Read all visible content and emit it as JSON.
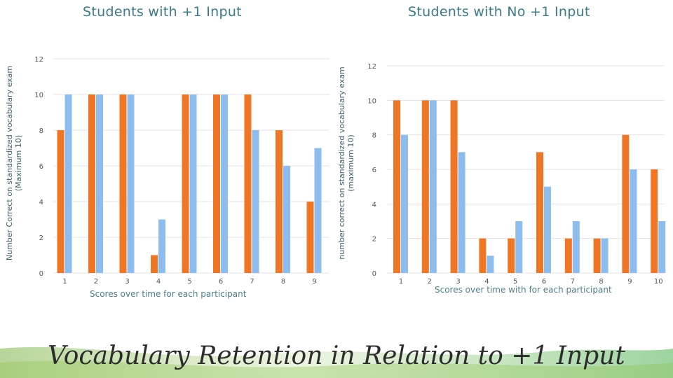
{
  "main_title": "Vocabulary Retention in Relation to +1 Input",
  "colors": {
    "series_a": "#ee7624",
    "series_b": "#8cbdee",
    "grid": "#e3e3e3",
    "title": "#3b7a8c"
  },
  "chart_data": [
    {
      "type": "bar",
      "title": "Students with +1 Input",
      "xlabel": "Scores over time for each participant",
      "ylabel": "Number Correct on standardized vocabulary exam (Maximum 10)",
      "categories": [
        "1",
        "2",
        "3",
        "4",
        "5",
        "6",
        "7",
        "8",
        "9"
      ],
      "yticks": [
        "0",
        "2",
        "4",
        "6",
        "8",
        "10",
        "12"
      ],
      "ylim": [
        0,
        12
      ],
      "grid": true,
      "series": [
        {
          "values": [
            8,
            10,
            10,
            1,
            10,
            10,
            10,
            8,
            4
          ]
        },
        {
          "values": [
            10,
            10,
            10,
            3,
            10,
            10,
            8,
            6,
            7
          ]
        }
      ]
    },
    {
      "type": "bar",
      "title": "Students with No +1 Input",
      "xlabel": "Scores over time with for each participant",
      "ylabel": "number correct on standardized vocabulary exam (maximum 10)",
      "categories": [
        "1",
        "2",
        "3",
        "4",
        "5",
        "6",
        "7",
        "8",
        "9",
        "10"
      ],
      "yticks": [
        "0",
        "2",
        "4",
        "6",
        "8",
        "10",
        "12"
      ],
      "ylim": [
        0,
        12
      ],
      "grid": true,
      "series": [
        {
          "values": [
            10,
            10,
            10,
            2,
            2,
            7,
            2,
            2,
            8,
            6
          ]
        },
        {
          "values": [
            8,
            10,
            7,
            1,
            3,
            5,
            3,
            2,
            6,
            3
          ]
        }
      ]
    }
  ]
}
